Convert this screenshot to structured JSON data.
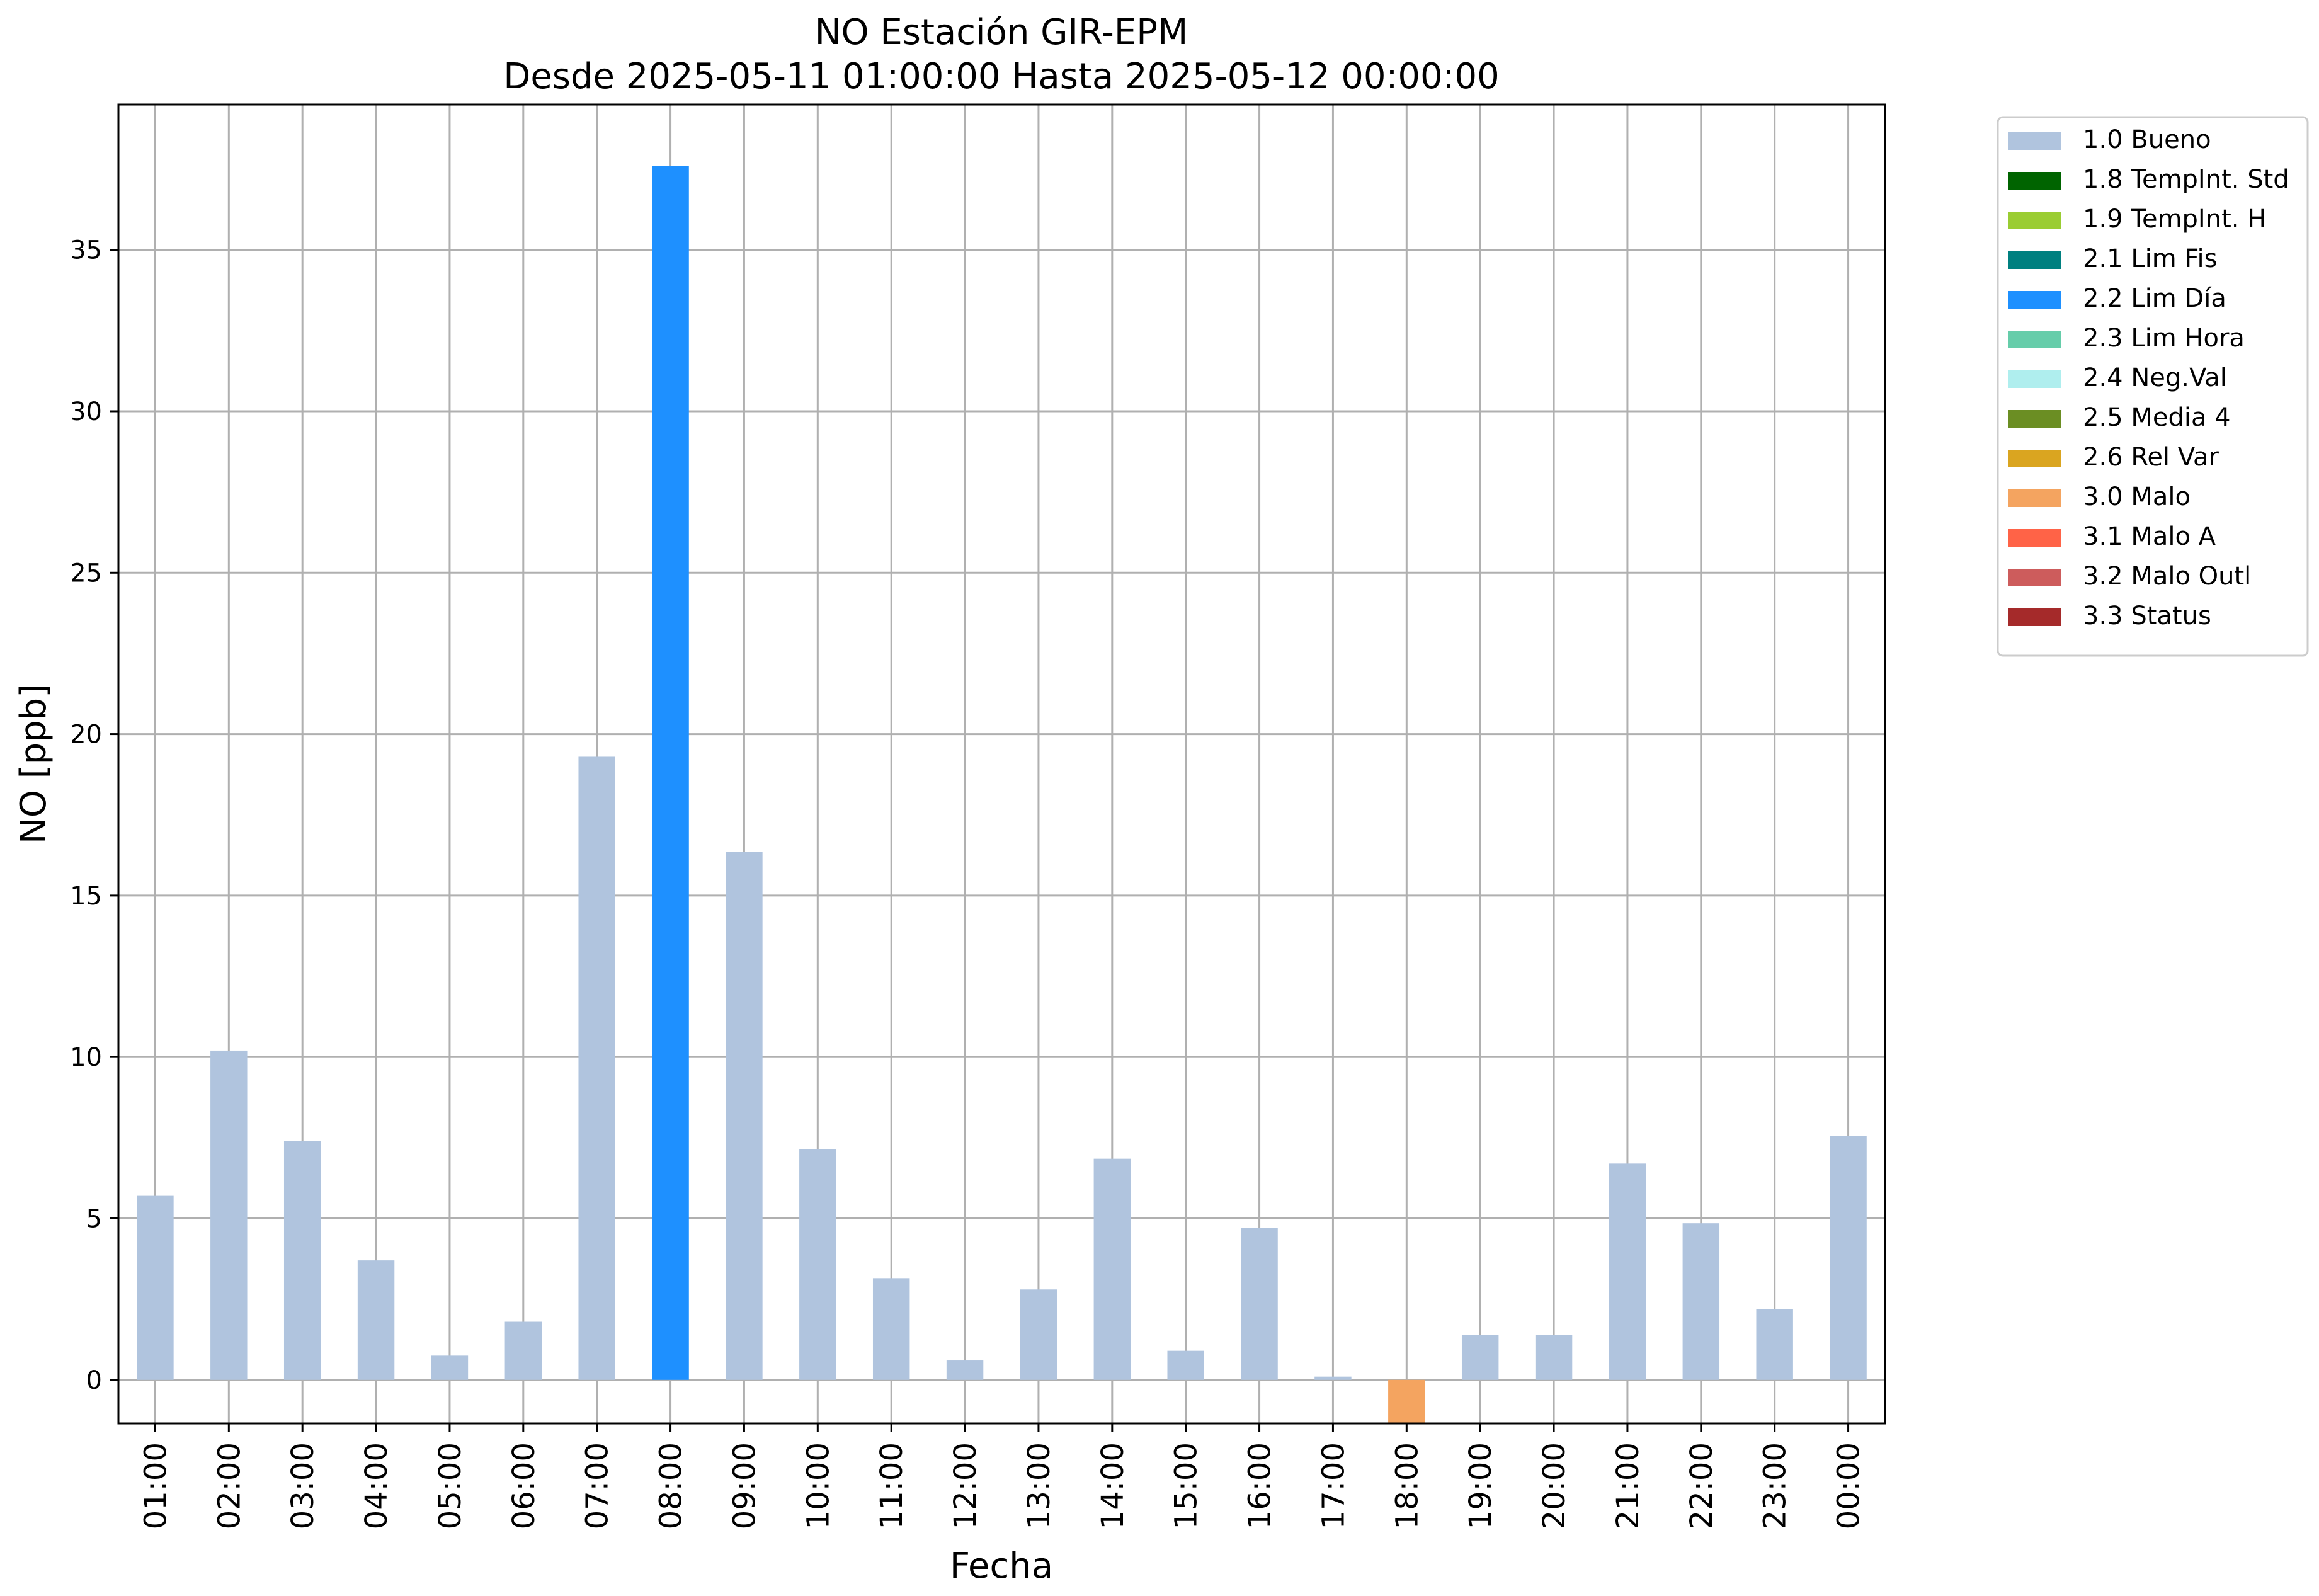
{
  "chart_data": {
    "type": "bar",
    "title": "NO Estación GIR-EPM",
    "subtitle": "Desde 2025-05-11 01:00:00 Hasta 2025-05-12 00:00:00",
    "xlabel": "Fecha",
    "ylabel": "NO [ppb]",
    "categories": [
      "01:00",
      "02:00",
      "03:00",
      "04:00",
      "05:00",
      "06:00",
      "07:00",
      "08:00",
      "09:00",
      "10:00",
      "11:00",
      "12:00",
      "13:00",
      "14:00",
      "15:00",
      "16:00",
      "17:00",
      "18:00",
      "19:00",
      "20:00",
      "21:00",
      "22:00",
      "23:00",
      "00:00"
    ],
    "values": [
      5.7,
      10.2,
      7.4,
      3.7,
      0.75,
      1.8,
      19.3,
      37.6,
      16.35,
      7.15,
      3.15,
      0.6,
      2.8,
      6.85,
      0.9,
      4.7,
      0.1,
      -1.35,
      1.4,
      1.4,
      6.7,
      4.85,
      2.2,
      7.55
    ],
    "flags": [
      "1.0 Bueno",
      "1.0 Bueno",
      "1.0 Bueno",
      "1.0 Bueno",
      "1.0 Bueno",
      "1.0 Bueno",
      "1.0 Bueno",
      "2.2 Lim Día",
      "1.0 Bueno",
      "1.0 Bueno",
      "1.0 Bueno",
      "1.0 Bueno",
      "1.0 Bueno",
      "1.0 Bueno",
      "1.0 Bueno",
      "1.0 Bueno",
      "1.0 Bueno",
      "3.0 Malo",
      "1.0 Bueno",
      "1.0 Bueno",
      "1.0 Bueno",
      "1.0 Bueno",
      "1.0 Bueno",
      "1.0 Bueno"
    ],
    "ylim": [
      -1.35,
      39.5
    ],
    "yticks": [
      0,
      5,
      10,
      15,
      20,
      25,
      30,
      35
    ],
    "grid": true,
    "legend_position": "outside-right-top",
    "legend": [
      {
        "label": "1.0 Bueno",
        "color": "#b0c4de"
      },
      {
        "label": "1.8 TempInt. Std",
        "color": "#006400"
      },
      {
        "label": "1.9 TempInt. H",
        "color": "#9acd32"
      },
      {
        "label": "2.1 Lim Fis",
        "color": "#008080"
      },
      {
        "label": "2.2 Lim Día",
        "color": "#1e90ff"
      },
      {
        "label": "2.3 Lim Hora",
        "color": "#66cdaa"
      },
      {
        "label": "2.4 Neg.Val",
        "color": "#afeeee"
      },
      {
        "label": "2.5 Media 4",
        "color": "#6b8e23"
      },
      {
        "label": "2.6 Rel Var",
        "color": "#daa520"
      },
      {
        "label": "3.0 Malo",
        "color": "#f4a460"
      },
      {
        "label": "3.1 Malo A",
        "color": "#ff6347"
      },
      {
        "label": "3.2 Malo Outl",
        "color": "#cd5c5c"
      },
      {
        "label": "3.3 Status",
        "color": "#a52a2a"
      }
    ]
  }
}
